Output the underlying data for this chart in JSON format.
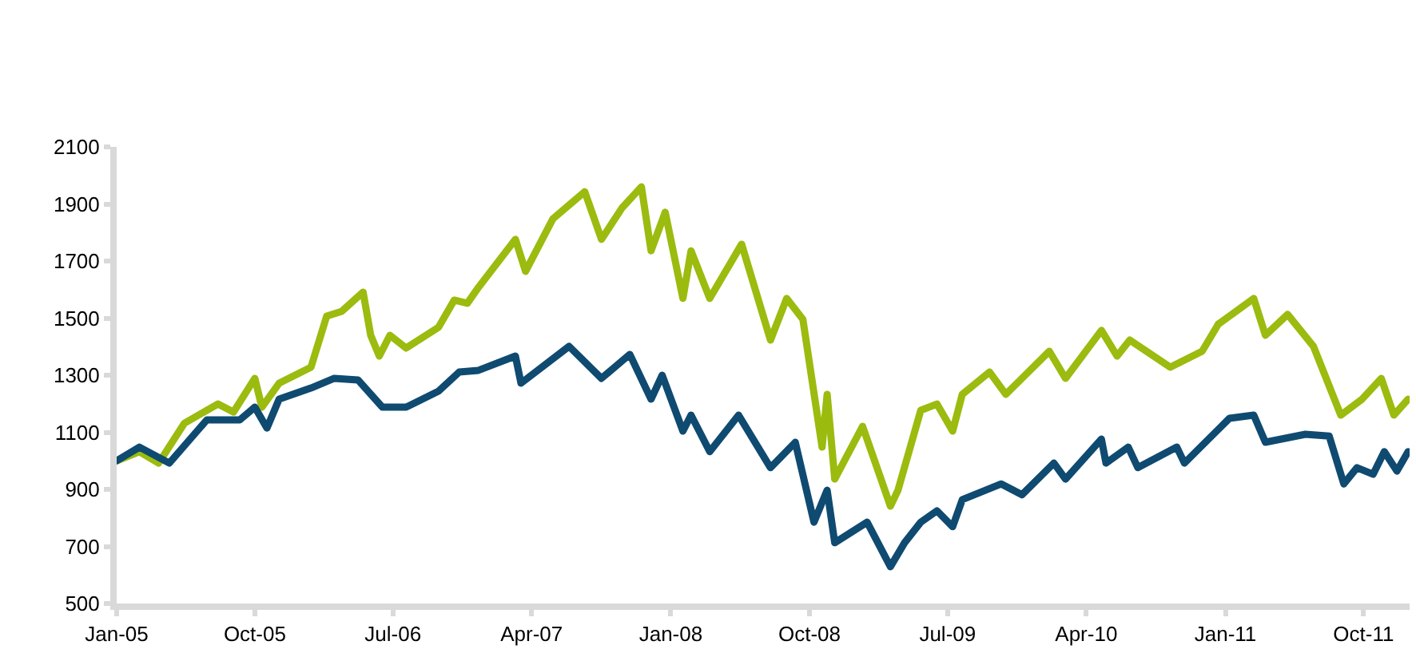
{
  "chart_data": {
    "type": "line",
    "xlim": [
      "2005-01-01",
      "2011-12-31"
    ],
    "xticks": [
      {
        "value": "2005-01-01",
        "label": "Jan-05"
      },
      {
        "value": "2005-10-01",
        "label": "Oct-05"
      },
      {
        "value": "2006-07-01",
        "label": "Jul-06"
      },
      {
        "value": "2007-04-01",
        "label": "Apr-07"
      },
      {
        "value": "2008-01-01",
        "label": "Jan-08"
      },
      {
        "value": "2008-10-01",
        "label": "Oct-08"
      },
      {
        "value": "2009-07-01",
        "label": "Jul-09"
      },
      {
        "value": "2010-04-01",
        "label": "Apr-10"
      },
      {
        "value": "2011-01-01",
        "label": "Jan-11"
      },
      {
        "value": "2011-10-01",
        "label": "Oct-11"
      }
    ],
    "ylim": [
      500,
      2100
    ],
    "yticks": [
      500,
      700,
      900,
      1100,
      1300,
      1500,
      1700,
      1900,
      2100
    ],
    "marker": "none",
    "line_style": "solid",
    "series": [
      {
        "color": "#9bbb0f",
        "x": [
          "2005-01-01",
          "2005-02-15",
          "2005-03-25",
          "2005-05-15",
          "2005-07-20",
          "2005-08-20",
          "2005-10-01",
          "2005-10-15",
          "2005-11-18",
          "2006-01-20",
          "2006-02-20",
          "2006-03-22",
          "2006-05-03",
          "2006-05-18",
          "2006-06-04",
          "2006-06-25",
          "2006-07-27",
          "2006-09-29",
          "2006-10-30",
          "2006-11-25",
          "2006-12-17",
          "2007-02-28",
          "2007-03-20",
          "2007-05-13",
          "2007-07-15",
          "2007-08-17",
          "2007-09-27",
          "2007-11-04",
          "2007-11-23",
          "2007-12-21",
          "2008-01-25",
          "2008-02-10",
          "2008-03-18",
          "2008-05-20",
          "2008-07-16",
          "2008-08-17",
          "2008-09-18",
          "2008-10-26",
          "2008-11-05",
          "2008-11-20",
          "2009-01-14",
          "2009-02-05",
          "2009-03-10",
          "2009-03-25",
          "2009-05-09",
          "2009-06-10",
          "2009-07-11",
          "2009-07-30",
          "2009-09-22",
          "2009-10-24",
          "2010-01-18",
          "2010-02-19",
          "2010-05-01",
          "2010-06-01",
          "2010-06-26",
          "2010-09-14",
          "2010-11-16",
          "2010-12-18",
          "2011-02-26",
          "2011-03-21",
          "2011-05-04",
          "2011-06-24",
          "2011-08-17",
          "2011-09-28",
          "2011-11-05",
          "2011-11-30",
          "2011-12-28"
        ],
        "values": [
          1000,
          1032,
          992,
          1132,
          1199,
          1171,
          1289,
          1188,
          1272,
          1328,
          1507,
          1524,
          1591,
          1440,
          1367,
          1440,
          1395,
          1468,
          1563,
          1552,
          1608,
          1776,
          1664,
          1848,
          1943,
          1776,
          1887,
          1960,
          1736,
          1871,
          1569,
          1736,
          1569,
          1759,
          1423,
          1569,
          1496,
          1048,
          1233,
          936,
          1121,
          1009,
          841,
          897,
          1177,
          1199,
          1104,
          1233,
          1311,
          1233,
          1384,
          1289,
          1457,
          1367,
          1423,
          1328,
          1384,
          1479,
          1569,
          1440,
          1513,
          1401,
          1160,
          1216,
          1289,
          1160,
          1216
        ]
      },
      {
        "color": "#0f4a71",
        "x": [
          "2005-01-01",
          "2005-02-15",
          "2005-04-15",
          "2005-06-28",
          "2005-09-01",
          "2005-10-01",
          "2005-10-25",
          "2005-11-18",
          "2006-01-20",
          "2006-03-07",
          "2006-04-23",
          "2006-06-10",
          "2006-07-27",
          "2006-09-29",
          "2006-11-09",
          "2006-12-17",
          "2007-02-28",
          "2007-03-11",
          "2007-06-14",
          "2007-08-17",
          "2007-10-12",
          "2007-11-23",
          "2007-12-15",
          "2008-01-25",
          "2008-02-10",
          "2008-03-18",
          "2008-05-14",
          "2008-07-16",
          "2008-09-03",
          "2008-10-10",
          "2008-11-05",
          "2008-11-20",
          "2009-01-23",
          "2009-03-10",
          "2009-04-07",
          "2009-05-09",
          "2009-06-10",
          "2009-07-11",
          "2009-07-30",
          "2009-10-15",
          "2009-11-25",
          "2010-01-27",
          "2010-02-19",
          "2010-05-01",
          "2010-05-10",
          "2010-06-23",
          "2010-07-12",
          "2010-09-27",
          "2010-10-12",
          "2011-01-09",
          "2011-02-26",
          "2011-03-21",
          "2011-06-08",
          "2011-07-25",
          "2011-08-23",
          "2011-09-18",
          "2011-10-20",
          "2011-11-11",
          "2011-12-06",
          "2011-12-28"
        ],
        "values": [
          1000,
          1048,
          992,
          1143,
          1143,
          1188,
          1115,
          1216,
          1255,
          1289,
          1283,
          1188,
          1188,
          1244,
          1311,
          1317,
          1367,
          1272,
          1401,
          1289,
          1373,
          1216,
          1300,
          1104,
          1160,
          1032,
          1160,
          976,
          1065,
          785,
          897,
          713,
          785,
          629,
          713,
          785,
          825,
          769,
          864,
          919,
          881,
          992,
          936,
          1076,
          992,
          1048,
          976,
          1048,
          992,
          1149,
          1160,
          1065,
          1093,
          1087,
          919,
          976,
          953,
          1032,
          964,
          1032
        ]
      }
    ]
  }
}
